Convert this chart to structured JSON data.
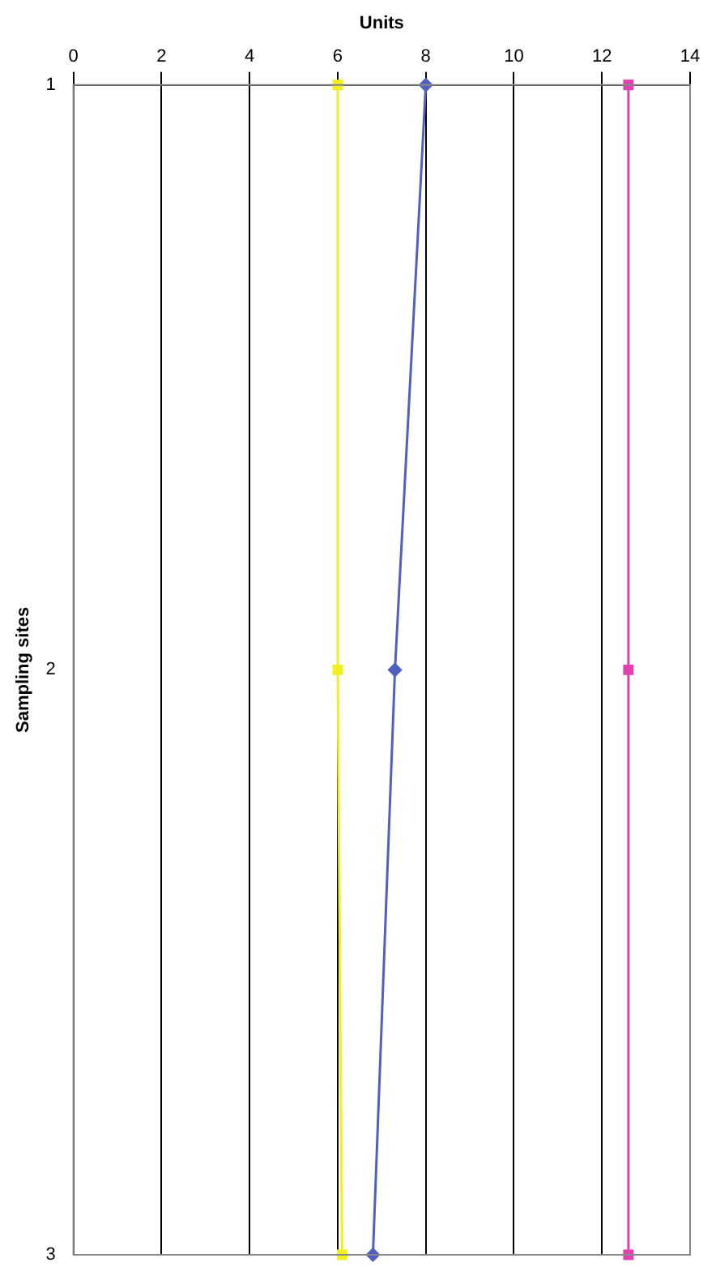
{
  "chart_data": {
    "type": "line",
    "orientation": "horizontal",
    "xlabel": "Units",
    "ylabel": "Sampling sites",
    "categories": [
      "1",
      "2",
      "3"
    ],
    "series": [
      {
        "color": "#5060c0",
        "values": [
          8.0,
          7.3,
          6.8
        ],
        "marker": "diamond"
      },
      {
        "color": "#e040b0",
        "values": [
          12.6,
          12.6,
          12.6
        ],
        "marker": "square"
      },
      {
        "color": "#f0f020",
        "values": [
          6.0,
          6.0,
          6.1
        ],
        "marker": "square"
      }
    ],
    "xlim": [
      0,
      14
    ],
    "xticks": [
      0,
      2,
      4,
      6,
      8,
      10,
      12,
      14
    ],
    "grid": "x",
    "legend": false
  }
}
